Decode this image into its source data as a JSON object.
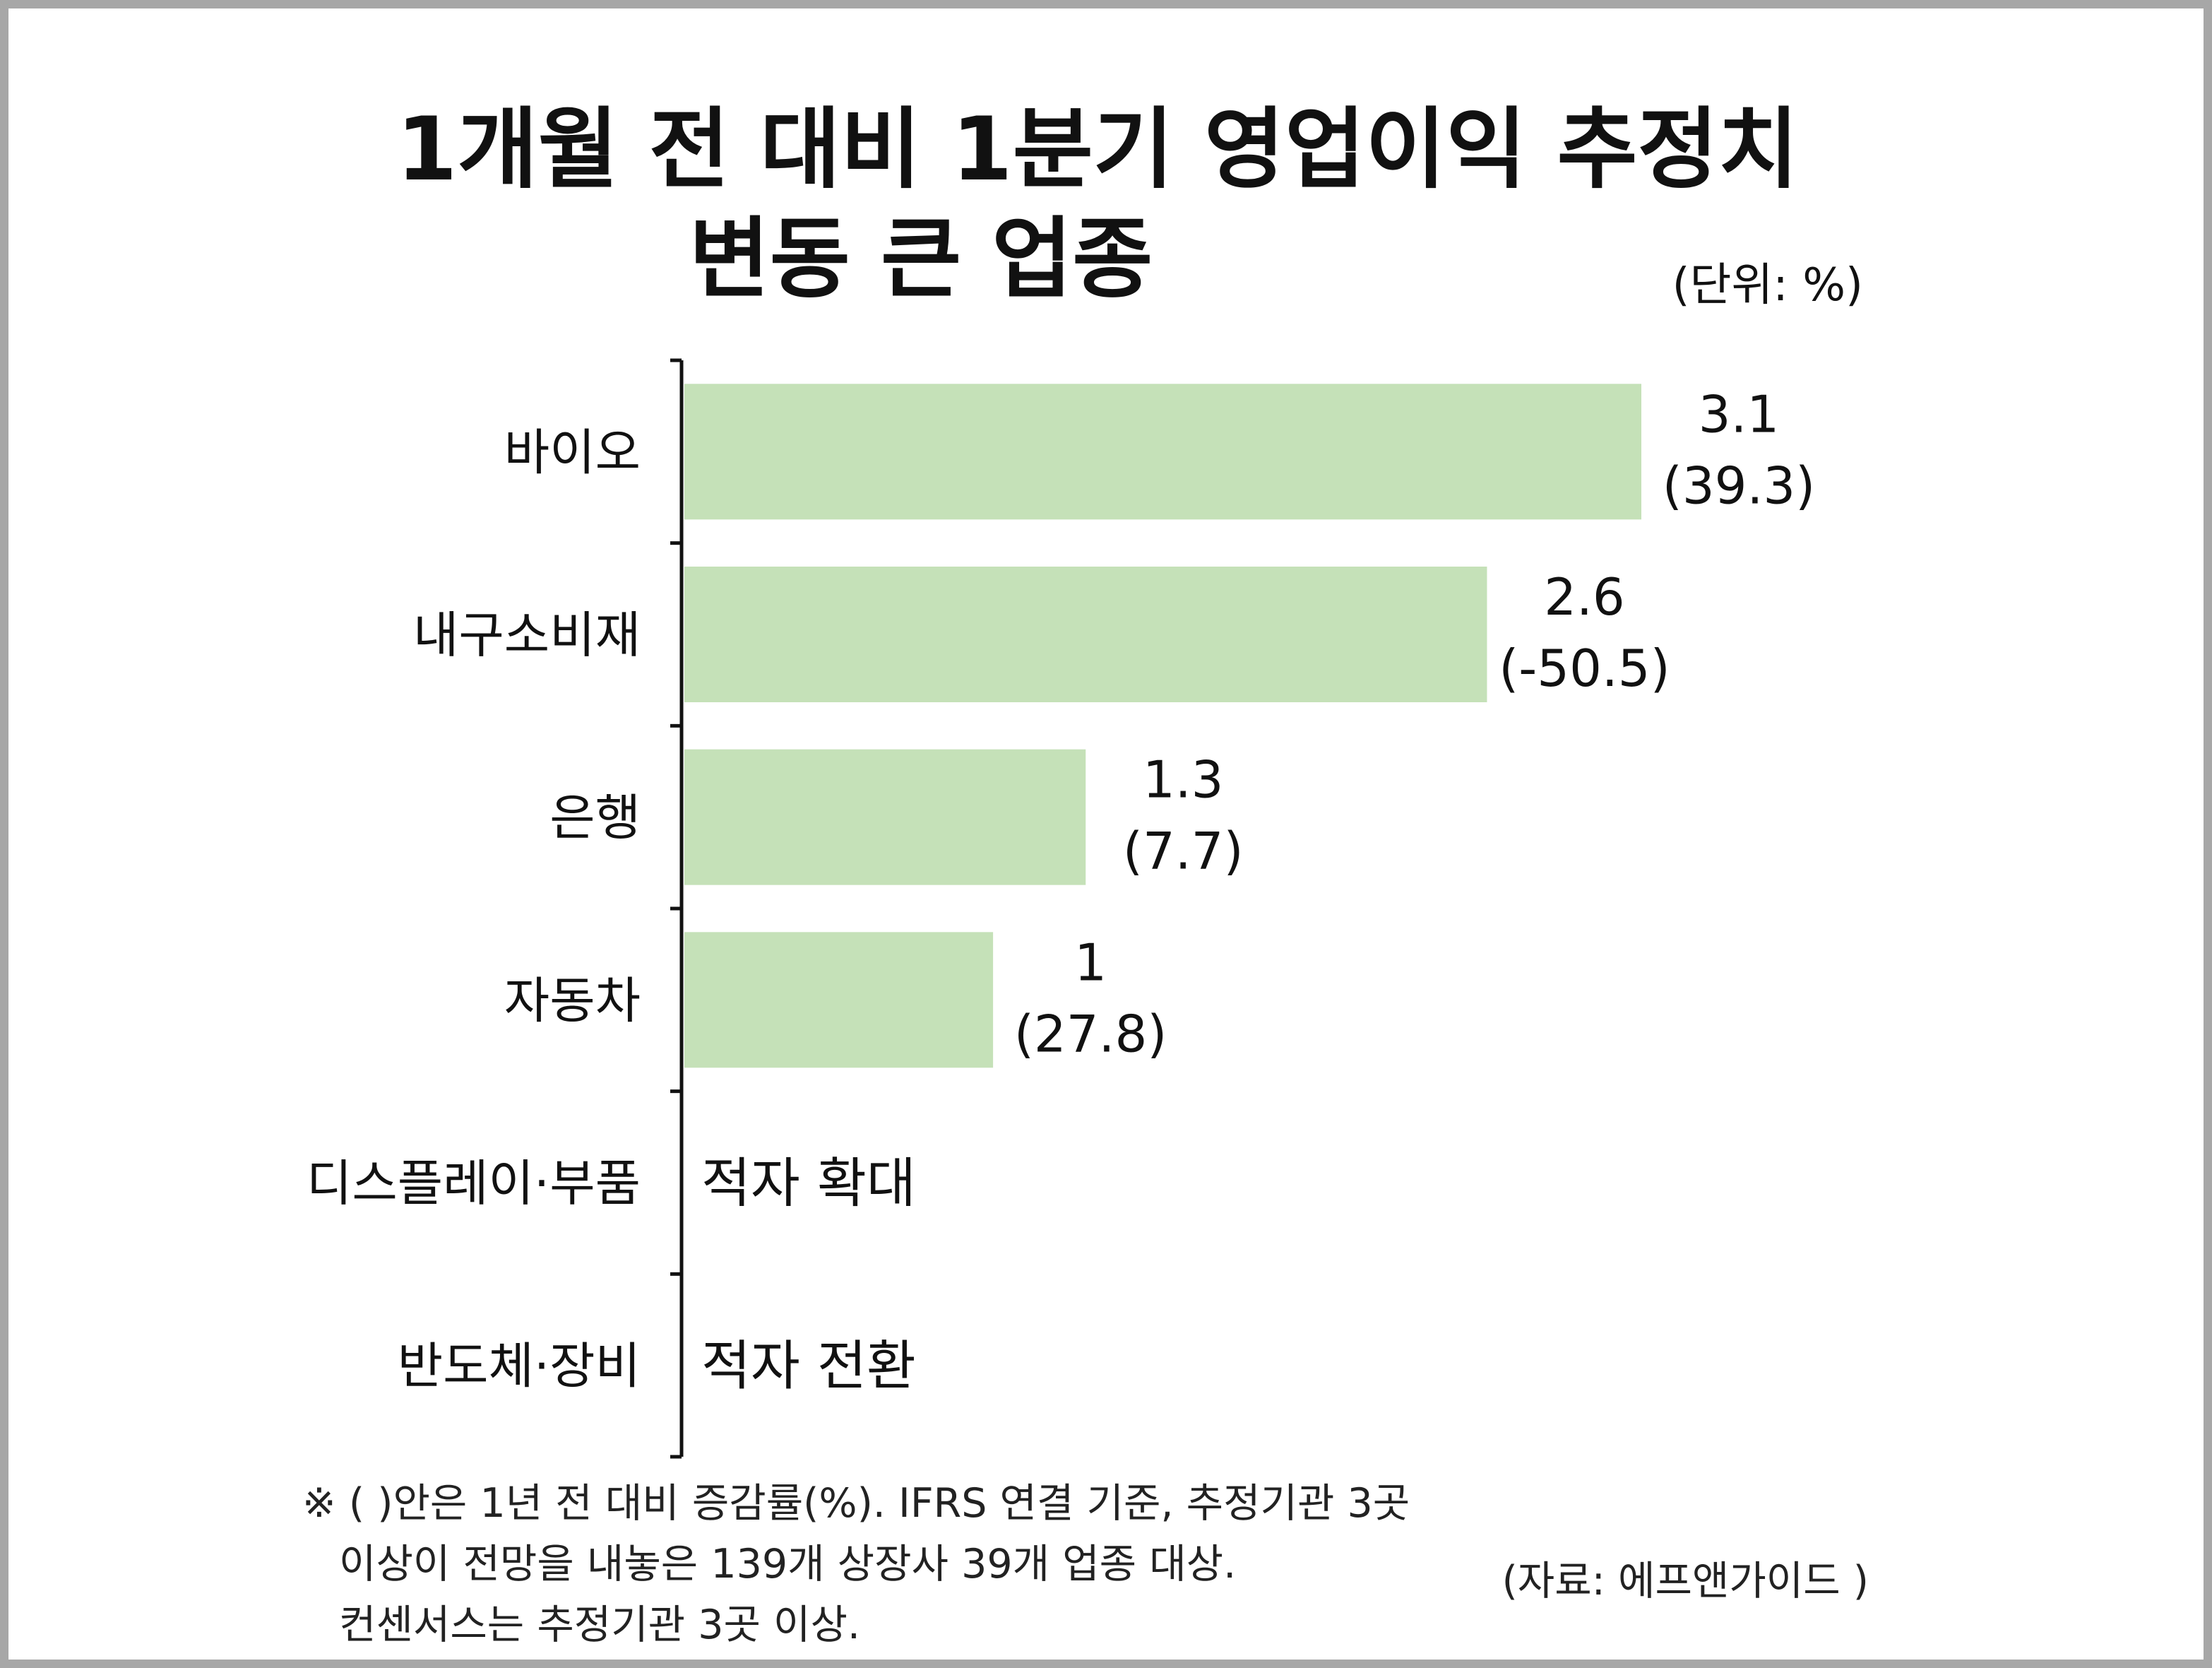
{
  "chart_data": {
    "type": "bar",
    "orientation": "horizontal",
    "title": "1개월 전 대비 1분기 영업이익 추정치 변동 큰 업종",
    "title_lines": [
      "1개월 전 대비 1분기 영업이익 추정치",
      "변동 큰 업종"
    ],
    "unit": "(단위: %)",
    "categories": [
      "바이오",
      "내구소비재",
      "은행",
      "자동차",
      "디스플레이·부품",
      "반도체·장비"
    ],
    "values": [
      3.1,
      2.6,
      1.3,
      1,
      null,
      null
    ],
    "value_labels": [
      "3.1",
      "2.6",
      "1.3",
      "1",
      "",
      ""
    ],
    "yoy_labels": [
      "(39.3)",
      "(-50.5)",
      "(7.7)",
      "(27.8)",
      "",
      ""
    ],
    "text_notes": [
      "",
      "",
      "",
      "",
      "적자 확대",
      "적자 전환"
    ],
    "bar_color": "#c5e1b8",
    "xlim": [
      0,
      3.1
    ]
  },
  "footnote": [
    "※ ( )안은 1년 전 대비 증감률(%). IFRS 연결 기준, 추정기관 3곳",
    "이상이 전망을 내놓은 139개 상장사 39개 업종 대상.",
    "컨센서스는 추정기관 3곳 이상."
  ],
  "source": "(자료: 에프앤가이드 )"
}
